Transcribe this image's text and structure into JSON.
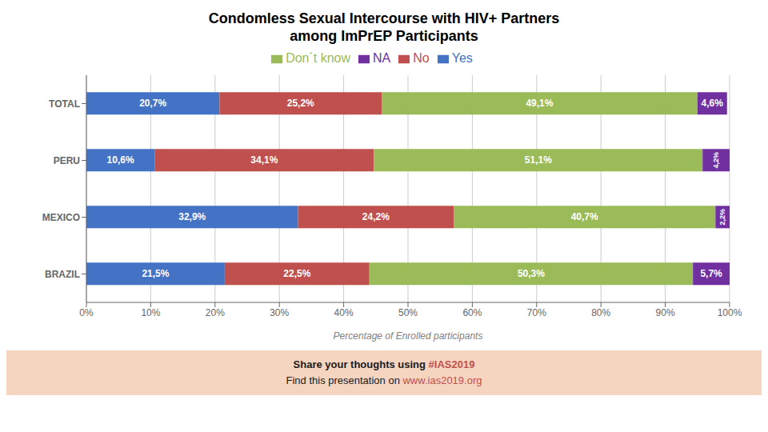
{
  "chart_data": {
    "type": "bar",
    "orientation": "horizontal",
    "stacked": true,
    "data_labels": true,
    "grid": true,
    "legend": "top",
    "title": "Condomless Sexual Intercourse with HIV+ Partners",
    "subtitle": "among ImPrEP Participants",
    "x_label": "Percentage of  Enrolled participants",
    "categories": [
      "BRAZIL",
      "MEXICO",
      "PERU",
      "TOTAL"
    ],
    "series": [
      {
        "name": "Yes",
        "color": "#4472C4",
        "values": [
          21.5,
          32.9,
          10.6,
          20.7
        ],
        "value_labels": [
          "21,5%",
          "32,9%",
          "10,6%",
          "20,7%"
        ]
      },
      {
        "name": "No",
        "color": "#C0504D",
        "values": [
          22.5,
          24.2,
          34.1,
          25.2
        ],
        "value_labels": [
          "22,5%",
          "24,2%",
          "34,1%",
          "25,2%"
        ]
      },
      {
        "name": "Don´t know",
        "color": "#9BBB59",
        "values": [
          50.3,
          40.7,
          51.1,
          49.1
        ],
        "value_labels": [
          "50,3%",
          "40,7%",
          "51,1%",
          "49,1%"
        ]
      },
      {
        "name": "NA",
        "color": "#7030A0",
        "values": [
          5.7,
          2.2,
          4.2,
          4.6
        ],
        "value_labels": [
          "5,7%",
          "2,2%",
          "4,2%",
          "4,6%"
        ]
      }
    ],
    "xlim": [
      0,
      100
    ],
    "xticks": [
      {
        "value": 0,
        "label": "0%"
      },
      {
        "value": 10,
        "label": "10%"
      },
      {
        "value": 20,
        "label": "20%"
      },
      {
        "value": 30,
        "label": "30%"
      },
      {
        "value": 40,
        "label": "40%"
      },
      {
        "value": 50,
        "label": "50%"
      },
      {
        "value": 60,
        "label": "60%"
      },
      {
        "value": 70,
        "label": "70%"
      },
      {
        "value": 80,
        "label": "80%"
      },
      {
        "value": 90,
        "label": "90%"
      },
      {
        "value": 100,
        "label": "100%"
      }
    ],
    "annotations": [
      "Share your thoughts using #IAS2019",
      "Find this presentation on www.ias2019.org"
    ]
  }
}
